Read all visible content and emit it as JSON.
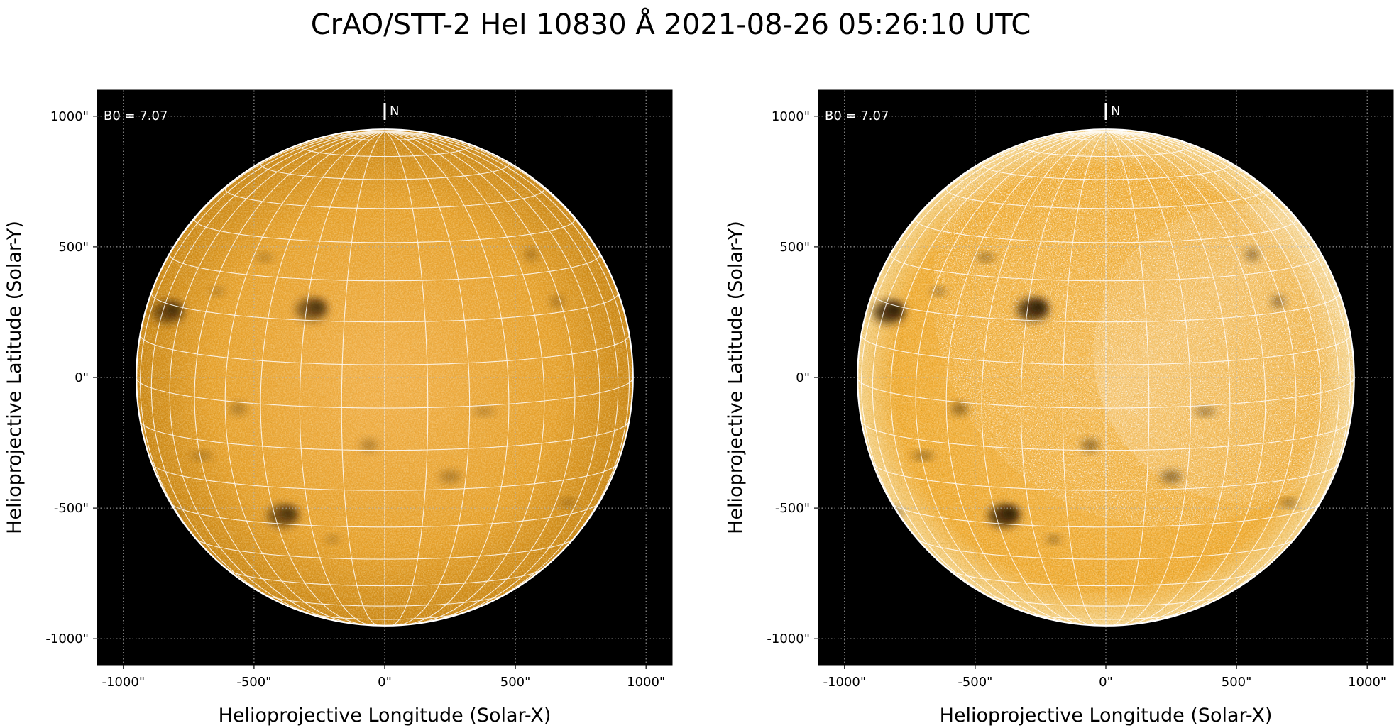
{
  "title": "CrAO/STT-2 HeI 10830 Å 2021-08-26 05:26:10 UTC",
  "colors": {
    "background": "#000000",
    "disk_light": "#f0ac3c",
    "disk_mid": "#e29a1a",
    "disk_dark": "#b87608",
    "grid": "#ffffff",
    "axes_grid": "#b3b3b3"
  },
  "panels": [
    {
      "name": "original",
      "b0_label": "B0 = 7.07",
      "north_label": "N",
      "xlabel": "Helioprojective Longitude (Solar-X)",
      "ylabel": "Helioprojective Latitude (Solar-Y)",
      "x_ticks": [
        "-1000\"",
        "-500\"",
        "0\"",
        "500\"",
        "1000\""
      ],
      "y_ticks": [
        "1000\"",
        "500\"",
        "0\"",
        "-500\"",
        "-1000\""
      ],
      "enhanced": false
    },
    {
      "name": "enhanced",
      "b0_label": "B0 = 7.07",
      "north_label": "N",
      "xlabel": "Helioprojective Longitude (Solar-X)",
      "ylabel": "Helioprojective Latitude (Solar-Y)",
      "x_ticks": [
        "-1000\"",
        "-500\"",
        "0\"",
        "500\"",
        "1000\""
      ],
      "y_ticks": [
        "1000\"",
        "500\"",
        "0\"",
        "-500\"",
        "-1000\""
      ],
      "enhanced": true
    }
  ],
  "features": [
    {
      "name": "filament-northeast",
      "x": -280,
      "y": 260
    },
    {
      "name": "sunspot-southeast",
      "x": -390,
      "y": -530
    },
    {
      "name": "filament-east-limb",
      "x": -830,
      "y": 250
    }
  ]
}
